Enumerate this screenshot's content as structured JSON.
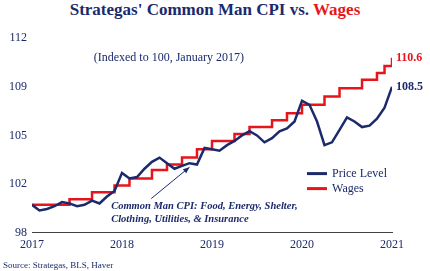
{
  "chart_data": {
    "type": "line",
    "title": "Strategas' Common Man CPI vs. Wages",
    "subtitle": "(Indexed to 100, January 2017)",
    "note": [
      "Common Man CPI: Food, Energy, Shelter,",
      "Clothing, Utilities, & Insurance"
    ],
    "source": "Source: Strategas, BLS, Haver",
    "x": [
      2017,
      2017.083,
      2017.167,
      2017.25,
      2017.333,
      2017.417,
      2017.5,
      2017.583,
      2017.667,
      2017.75,
      2017.833,
      2017.917,
      2018,
      2018.083,
      2018.167,
      2018.25,
      2018.333,
      2018.417,
      2018.5,
      2018.583,
      2018.667,
      2018.75,
      2018.833,
      2018.917,
      2019,
      2019.083,
      2019.167,
      2019.25,
      2019.333,
      2019.417,
      2019.5,
      2019.583,
      2019.667,
      2019.75,
      2019.833,
      2019.917,
      2020,
      2020.083,
      2020.167,
      2020.25,
      2020.333,
      2020.417,
      2020.5,
      2020.583,
      2020.667,
      2020.75,
      2020.833,
      2020.917,
      2021
    ],
    "series": [
      {
        "name": "Price Level",
        "color": "#1b2a6b",
        "line_style": "solid",
        "values": [
          100.0,
          99.6,
          99.7,
          99.9,
          100.2,
          100.1,
          99.9,
          100.0,
          100.3,
          100.1,
          100.6,
          101.0,
          102.3,
          101.9,
          102.0,
          102.6,
          103.1,
          103.4,
          103.0,
          102.6,
          102.8,
          103.0,
          102.9,
          104.1,
          104.0,
          103.9,
          104.3,
          104.6,
          105.0,
          105.3,
          105.0,
          104.5,
          104.8,
          105.3,
          105.5,
          106.0,
          107.5,
          107.2,
          106.0,
          104.3,
          104.5,
          105.4,
          106.3,
          106.0,
          105.6,
          105.7,
          106.2,
          107.0,
          108.5
        ]
      },
      {
        "name": "Wages",
        "color": "#e8141b",
        "line_style": "stepped",
        "values": [
          100.0,
          100.0,
          100.0,
          100.0,
          100.0,
          100.4,
          100.4,
          100.4,
          100.9,
          100.9,
          100.9,
          101.4,
          101.4,
          101.9,
          101.9,
          101.9,
          102.5,
          102.5,
          102.9,
          102.9,
          103.4,
          103.4,
          104.0,
          104.0,
          104.6,
          104.6,
          104.6,
          105.1,
          105.1,
          105.6,
          105.6,
          105.6,
          106.1,
          106.1,
          106.6,
          106.6,
          107.2,
          107.2,
          107.2,
          107.8,
          107.8,
          108.4,
          108.4,
          108.4,
          109.0,
          109.0,
          109.5,
          110.0,
          110.6
        ]
      }
    ],
    "annotations": [
      {
        "text": "108.5",
        "series": "Price Level"
      },
      {
        "text": "110.6",
        "series": "Wages"
      }
    ],
    "xlim": [
      2017,
      2021
    ],
    "xticks": [
      2017,
      2018,
      2019,
      2020,
      2021
    ],
    "ylim": [
      98,
      112
    ],
    "yticks": [
      98,
      {
        "value": 101.5,
        "label": "102"
      },
      105,
      {
        "value": 108.5,
        "label": "109"
      },
      112
    ],
    "grid": false,
    "legend": "lower right"
  }
}
